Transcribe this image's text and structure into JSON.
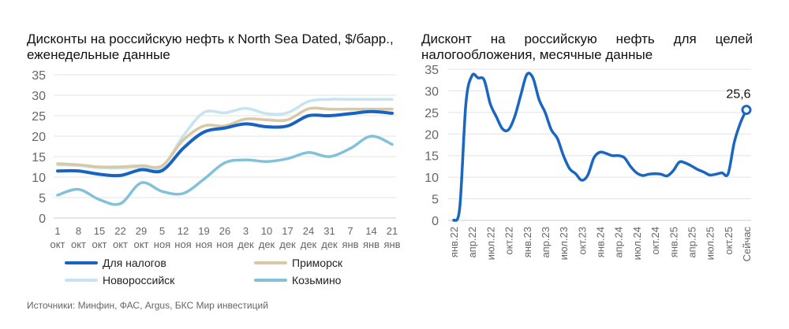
{
  "chart_data": [
    {
      "type": "line",
      "title": "Дисконты на российскую нефть к North Sea Dated, $/барр., еженедельные данные",
      "categories": [
        "1 окт",
        "8 окт",
        "15 окт",
        "22 окт",
        "29 окт",
        "5 ноя",
        "12 ноя",
        "19 ноя",
        "26 ноя",
        "3 дек",
        "10 дек",
        "17 дек",
        "24 дек",
        "31 дек",
        "7 янв",
        "14 янв",
        "21 янв"
      ],
      "ylim": [
        0,
        35
      ],
      "yticks": [
        0,
        5,
        10,
        15,
        20,
        25,
        30,
        35
      ],
      "grid": true,
      "legend": "bottom",
      "series": [
        {
          "name": "Новороссийск",
          "color": "#c6e4f0",
          "values": [
            13,
            12.8,
            12.3,
            12.2,
            12.5,
            12.5,
            20,
            25.8,
            25.7,
            26.8,
            25.5,
            25.7,
            28.5,
            29,
            29,
            29,
            29
          ]
        },
        {
          "name": "Приморск",
          "color": "#d8c8a4",
          "values": [
            13.3,
            13,
            12.5,
            12.5,
            12.8,
            12.8,
            19,
            22.5,
            22.5,
            24.2,
            24,
            24,
            26.7,
            26.6,
            26.6,
            26.6,
            26.6
          ]
        },
        {
          "name": "Козьмино",
          "color": "#82c2d8",
          "values": [
            5.6,
            7,
            4.5,
            3.5,
            8.6,
            6.5,
            6,
            9.5,
            13.5,
            14.2,
            13.8,
            14.5,
            16,
            15,
            17,
            20,
            18
          ]
        },
        {
          "name": "Для налогов",
          "color": "#1762c2",
          "values": [
            11.5,
            11.5,
            10.7,
            10.4,
            11.8,
            11.6,
            17,
            21,
            22,
            23,
            22.3,
            22.5,
            25,
            25,
            25.5,
            26,
            25.6
          ]
        }
      ]
    },
    {
      "type": "line",
      "title": "Дисконт на российскую нефть для целей налогообложения, месячные данные",
      "categories": [
        "янв.22",
        "",
        "",
        "апр.22",
        "",
        "",
        "июл.22",
        "",
        "",
        "окт.22",
        "",
        "",
        "янв.23",
        "",
        "",
        "апр.23",
        "",
        "",
        "июл.23",
        "",
        "",
        "окт.23",
        "",
        "",
        "янв.24",
        "",
        "",
        "апр.24",
        "",
        "",
        "июл.24",
        "",
        "",
        "окт.24",
        "",
        "",
        "янв.25",
        "",
        "",
        "апр.25",
        "",
        "",
        "июл.25",
        "",
        "",
        "окт.25",
        "",
        "",
        "Сейчас"
      ],
      "ylim": [
        0,
        35
      ],
      "yticks": [
        0,
        5,
        10,
        15,
        20,
        25,
        30,
        35
      ],
      "grid": true,
      "color": "#1a66c0",
      "values": [
        0,
        3,
        27,
        33.5,
        33,
        32.5,
        27,
        24,
        21.2,
        21,
        24,
        29,
        33.8,
        33,
        28,
        25,
        21,
        19,
        15,
        12,
        10.8,
        9.3,
        10.5,
        14.5,
        15.8,
        15.5,
        15,
        15,
        14.5,
        12.5,
        11,
        10.4,
        10.7,
        10.8,
        10.7,
        10.3,
        11.5,
        13.5,
        13.3,
        12.6,
        11.8,
        11.2,
        10.5,
        10.7,
        11,
        10.8,
        18,
        22.5,
        25.6
      ],
      "annotation": "25,6"
    }
  ],
  "source": "Источники: Минфин, ФАС, Argus, БКС Мир инвестиций"
}
